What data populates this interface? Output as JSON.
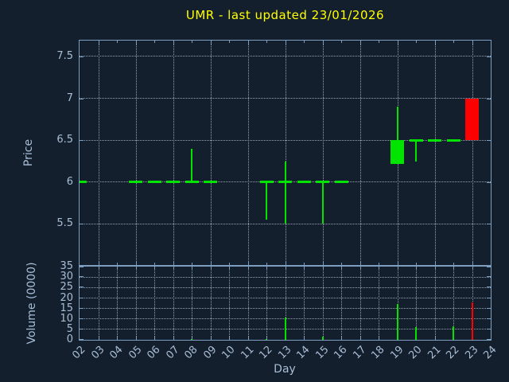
{
  "window": {
    "background": "#141f2d"
  },
  "colors": {
    "background": "#141f2d",
    "axis": "#7e9ec0",
    "grid": "#97a4b1",
    "tick_label": "#a8bed6",
    "title": "#ffff00",
    "up": "#00e400",
    "down": "#ff0000"
  },
  "chart_data": [
    {
      "type": "candlestick",
      "title": "UMR - last updated 23/01/2026",
      "xlabel": "Day",
      "ylabel": "Price",
      "xlim": [
        2,
        24
      ],
      "ylim": [
        5.01,
        7.69
      ],
      "yticks": [
        5.5,
        6,
        6.5,
        7,
        7.5
      ],
      "ytick_labels": [
        "5.5",
        "6",
        "6.5",
        "7",
        "7.5"
      ],
      "grid": "dotted",
      "legend": "none",
      "xticks": [
        {
          "x": 2,
          "label": "02"
        },
        {
          "x": 3,
          "label": "03"
        },
        {
          "x": 4,
          "label": "04"
        },
        {
          "x": 5,
          "label": "05"
        },
        {
          "x": 6,
          "label": "06"
        },
        {
          "x": 7,
          "label": "07"
        },
        {
          "x": 8,
          "label": "08"
        },
        {
          "x": 9,
          "label": "09"
        },
        {
          "x": 10,
          "label": "10"
        },
        {
          "x": 11,
          "label": "11"
        },
        {
          "x": 12,
          "label": "12"
        },
        {
          "x": 13,
          "label": "13"
        },
        {
          "x": 14,
          "label": "14"
        },
        {
          "x": 15,
          "label": "15"
        },
        {
          "x": 16,
          "label": "16"
        },
        {
          "x": 17,
          "label": "17"
        },
        {
          "x": 18,
          "label": "18"
        },
        {
          "x": 19,
          "label": "19"
        },
        {
          "x": 20,
          "label": "20"
        },
        {
          "x": 21,
          "label": "21"
        },
        {
          "x": 22,
          "label": "22"
        },
        {
          "x": 23,
          "label": "23"
        },
        {
          "x": 24,
          "label": "24"
        }
      ],
      "candles": [
        {
          "day": 2,
          "open": 6.0,
          "high": 6.0,
          "low": 6.0,
          "close": 6.0
        },
        {
          "day": 5,
          "open": 6.0,
          "high": 6.0,
          "low": 6.0,
          "close": 6.0
        },
        {
          "day": 6,
          "open": 6.0,
          "high": 6.0,
          "low": 6.0,
          "close": 6.0
        },
        {
          "day": 7,
          "open": 6.0,
          "high": 6.0,
          "low": 6.0,
          "close": 6.0
        },
        {
          "day": 8,
          "open": 6.0,
          "high": 6.4,
          "low": 6.0,
          "close": 6.0
        },
        {
          "day": 9,
          "open": 6.0,
          "high": 6.0,
          "low": 6.0,
          "close": 6.0
        },
        {
          "day": 12,
          "open": 6.0,
          "high": 6.0,
          "low": 5.55,
          "close": 6.0
        },
        {
          "day": 13,
          "open": 6.0,
          "high": 6.25,
          "low": 5.5,
          "close": 6.0
        },
        {
          "day": 14,
          "open": 6.0,
          "high": 6.0,
          "low": 6.0,
          "close": 6.0
        },
        {
          "day": 15,
          "open": 6.0,
          "high": 6.0,
          "low": 5.5,
          "close": 6.0
        },
        {
          "day": 16,
          "open": 6.0,
          "high": 6.0,
          "low": 6.0,
          "close": 6.0
        },
        {
          "day": 19,
          "open": 6.22,
          "high": 6.9,
          "low": 6.22,
          "close": 6.5
        },
        {
          "day": 20,
          "open": 6.5,
          "high": 6.5,
          "low": 6.25,
          "close": 6.5
        },
        {
          "day": 21,
          "open": 6.5,
          "high": 6.5,
          "low": 6.5,
          "close": 6.5
        },
        {
          "day": 22,
          "open": 6.5,
          "high": 6.5,
          "low": 6.5,
          "close": 6.5
        },
        {
          "day": 23,
          "open": 7.0,
          "high": 7.0,
          "low": 6.5,
          "close": 6.5
        }
      ]
    },
    {
      "type": "bar",
      "ylabel": "Volume (0000)",
      "xlim": [
        2,
        24
      ],
      "ylim": [
        0,
        35.1
      ],
      "yticks": [
        0,
        5,
        10,
        15,
        20,
        25,
        30,
        35
      ],
      "ytick_labels": [
        "0",
        "5",
        "10",
        "15",
        "20",
        "25",
        "30",
        "35"
      ],
      "grid": "dotted",
      "bars": [
        {
          "day": 8,
          "value": 0.5,
          "direction": "up"
        },
        {
          "day": 12,
          "value": 0.5,
          "direction": "up"
        },
        {
          "day": 13,
          "value": 10.5,
          "direction": "up"
        },
        {
          "day": 15,
          "value": 1.5,
          "direction": "up"
        },
        {
          "day": 19,
          "value": 17,
          "direction": "up"
        },
        {
          "day": 20,
          "value": 6,
          "direction": "up"
        },
        {
          "day": 22,
          "value": 6.5,
          "direction": "up"
        },
        {
          "day": 23,
          "value": 18,
          "direction": "down"
        }
      ]
    }
  ]
}
